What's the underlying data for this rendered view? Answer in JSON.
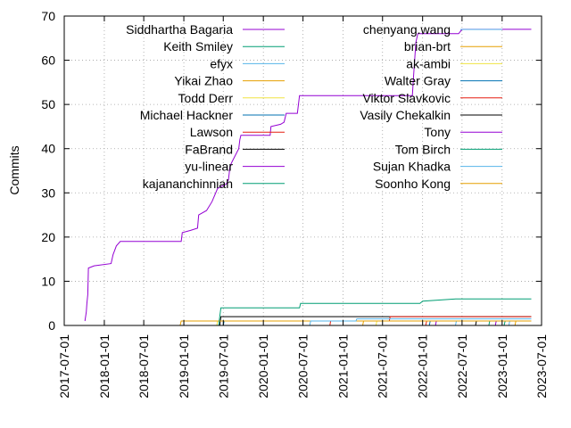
{
  "chart_data": {
    "type": "line",
    "title": "",
    "xlabel": "",
    "ylabel": "Commits",
    "xlim": [
      "2017-07-01",
      "2023-07-01"
    ],
    "ylim": [
      0,
      70
    ],
    "x_ticks": [
      "2017-07-01",
      "2018-01-01",
      "2018-07-01",
      "2019-01-01",
      "2019-07-01",
      "2020-01-01",
      "2020-07-01",
      "2021-01-01",
      "2021-07-01",
      "2022-01-01",
      "2022-07-01",
      "2023-01-01",
      "2023-07-01"
    ],
    "y_ticks": [
      0,
      10,
      20,
      30,
      40,
      50,
      60,
      70
    ],
    "grid": true,
    "legend": "top-inside, two columns",
    "series": [
      {
        "name": "Siddhartha Bagaria",
        "color": "#9400d3",
        "points": [
          [
            "2017-10-04",
            1
          ],
          [
            "2017-10-10",
            3
          ],
          [
            "2017-10-13",
            5
          ],
          [
            "2017-10-17",
            7
          ],
          [
            "2017-10-20",
            13
          ],
          [
            "2017-11-15",
            13.5
          ],
          [
            "2018-02-01",
            14
          ],
          [
            "2018-02-10",
            16
          ],
          [
            "2018-02-25",
            18
          ],
          [
            "2018-03-15",
            19
          ],
          [
            "2018-12-20",
            19
          ],
          [
            "2018-12-25",
            21
          ],
          [
            "2019-02-01",
            21.5
          ],
          [
            "2019-03-05",
            22
          ],
          [
            "2019-03-10",
            25
          ],
          [
            "2019-04-15",
            26
          ],
          [
            "2019-05-10",
            28
          ],
          [
            "2019-06-05",
            31
          ],
          [
            "2019-06-25",
            31.5
          ],
          [
            "2019-07-15",
            32
          ],
          [
            "2019-07-25",
            33
          ],
          [
            "2019-08-01",
            36
          ],
          [
            "2019-08-10",
            37
          ],
          [
            "2019-09-10",
            40
          ],
          [
            "2019-09-15",
            42
          ],
          [
            "2019-09-20",
            43
          ],
          [
            "2020-02-01",
            43
          ],
          [
            "2020-02-05",
            45
          ],
          [
            "2020-03-20",
            45.5
          ],
          [
            "2020-04-05",
            46
          ],
          [
            "2020-04-15",
            48
          ],
          [
            "2020-06-05",
            48
          ],
          [
            "2020-06-15",
            52
          ],
          [
            "2021-11-15",
            52
          ],
          [
            "2021-11-20",
            56
          ],
          [
            "2021-12-01",
            64
          ],
          [
            "2021-12-10",
            66
          ],
          [
            "2022-06-15",
            66
          ],
          [
            "2022-07-01",
            67
          ],
          [
            "2023-05-15",
            67
          ]
        ]
      },
      {
        "name": "Keith Smiley",
        "color": "#009e73",
        "points": [
          [
            "2019-06-10",
            0
          ],
          [
            "2019-06-15",
            2
          ],
          [
            "2019-06-20",
            4
          ],
          [
            "2020-06-15",
            4
          ],
          [
            "2020-06-20",
            5
          ],
          [
            "2021-12-20",
            5
          ],
          [
            "2022-01-01",
            5.5
          ],
          [
            "2022-06-01",
            6
          ],
          [
            "2023-05-15",
            6
          ]
        ]
      },
      {
        "name": "efyx",
        "color": "#56b4e9",
        "points": [
          [
            "2020-08-01",
            0
          ],
          [
            "2020-08-05",
            1
          ],
          [
            "2021-03-01",
            1
          ],
          [
            "2021-03-05",
            1.5
          ],
          [
            "2023-05-15",
            1.5
          ]
        ]
      },
      {
        "name": "Yikai Zhao",
        "color": "#e69f00",
        "points": [
          [
            "2018-12-15",
            0
          ],
          [
            "2018-12-20",
            1
          ],
          [
            "2023-05-15",
            1
          ]
        ]
      },
      {
        "name": "Todd Derr",
        "color": "#f0e442",
        "points": [
          [
            "2019-06-01",
            0
          ],
          [
            "2019-06-05",
            1
          ],
          [
            "2023-05-15",
            1
          ]
        ]
      },
      {
        "name": "Michael Hackner",
        "color": "#0072b2",
        "points": [
          [
            "2019-07-01",
            0
          ],
          [
            "2019-07-05",
            1
          ],
          [
            "2023-05-15",
            1
          ]
        ]
      },
      {
        "name": "Lawson",
        "color": "#e51e10",
        "points": [
          [
            "2020-11-01",
            0
          ],
          [
            "2020-11-05",
            1
          ],
          [
            "2021-08-01",
            1
          ],
          [
            "2021-08-05",
            2
          ],
          [
            "2023-05-15",
            2
          ]
        ]
      },
      {
        "name": "FaBrand",
        "color": "#000000",
        "points": [
          [
            "2019-06-15",
            0
          ],
          [
            "2019-06-20",
            2
          ],
          [
            "2023-05-15",
            2
          ]
        ]
      },
      {
        "name": "yu-linear",
        "color": "#9400d3",
        "points": [
          [
            "2022-03-01",
            0
          ],
          [
            "2022-03-05",
            1
          ],
          [
            "2023-05-15",
            1
          ]
        ]
      },
      {
        "name": "kajananchinniah",
        "color": "#009e73",
        "points": [
          [
            "2022-11-01",
            0
          ],
          [
            "2022-11-05",
            1
          ],
          [
            "2023-05-15",
            1
          ]
        ]
      },
      {
        "name": "chenyang.wang",
        "color": "#56b4e9",
        "points": [
          [
            "2022-06-01",
            0
          ],
          [
            "2022-06-05",
            1
          ],
          [
            "2023-05-15",
            1
          ]
        ]
      },
      {
        "name": "brian-brt",
        "color": "#e69f00",
        "points": [
          [
            "2021-04-01",
            0
          ],
          [
            "2021-04-05",
            1
          ],
          [
            "2023-05-15",
            1
          ]
        ]
      },
      {
        "name": "ak-ambi",
        "color": "#f0e442",
        "points": [
          [
            "2021-06-01",
            0
          ],
          [
            "2021-06-05",
            1
          ],
          [
            "2023-05-15",
            1
          ]
        ]
      },
      {
        "name": "Walter Gray",
        "color": "#0072b2",
        "points": [
          [
            "2022-02-01",
            0
          ],
          [
            "2022-02-05",
            1
          ],
          [
            "2023-05-15",
            1
          ]
        ]
      },
      {
        "name": "Viktor Slavkovic",
        "color": "#e51e10",
        "points": [
          [
            "2022-01-15",
            0
          ],
          [
            "2022-01-20",
            1
          ],
          [
            "2023-05-15",
            1
          ]
        ]
      },
      {
        "name": "Vasily Chekalkin",
        "color": "#000000",
        "points": [
          [
            "2022-09-01",
            0
          ],
          [
            "2022-09-05",
            1
          ],
          [
            "2023-05-15",
            1
          ]
        ]
      },
      {
        "name": "Tony",
        "color": "#9400d3",
        "points": [
          [
            "2022-12-01",
            0
          ],
          [
            "2022-12-05",
            1
          ],
          [
            "2023-05-15",
            1
          ]
        ]
      },
      {
        "name": "Tom Birch",
        "color": "#009e73",
        "points": [
          [
            "2023-01-10",
            0
          ],
          [
            "2023-01-15",
            1
          ],
          [
            "2023-05-15",
            1
          ]
        ]
      },
      {
        "name": "Sujan Khadka",
        "color": "#56b4e9",
        "points": [
          [
            "2023-02-01",
            0
          ],
          [
            "2023-02-05",
            1
          ],
          [
            "2023-05-15",
            1
          ]
        ]
      },
      {
        "name": "Soonho Kong",
        "color": "#e69f00",
        "points": [
          [
            "2023-03-01",
            0
          ],
          [
            "2023-03-05",
            1
          ],
          [
            "2023-05-15",
            1
          ]
        ]
      }
    ]
  }
}
